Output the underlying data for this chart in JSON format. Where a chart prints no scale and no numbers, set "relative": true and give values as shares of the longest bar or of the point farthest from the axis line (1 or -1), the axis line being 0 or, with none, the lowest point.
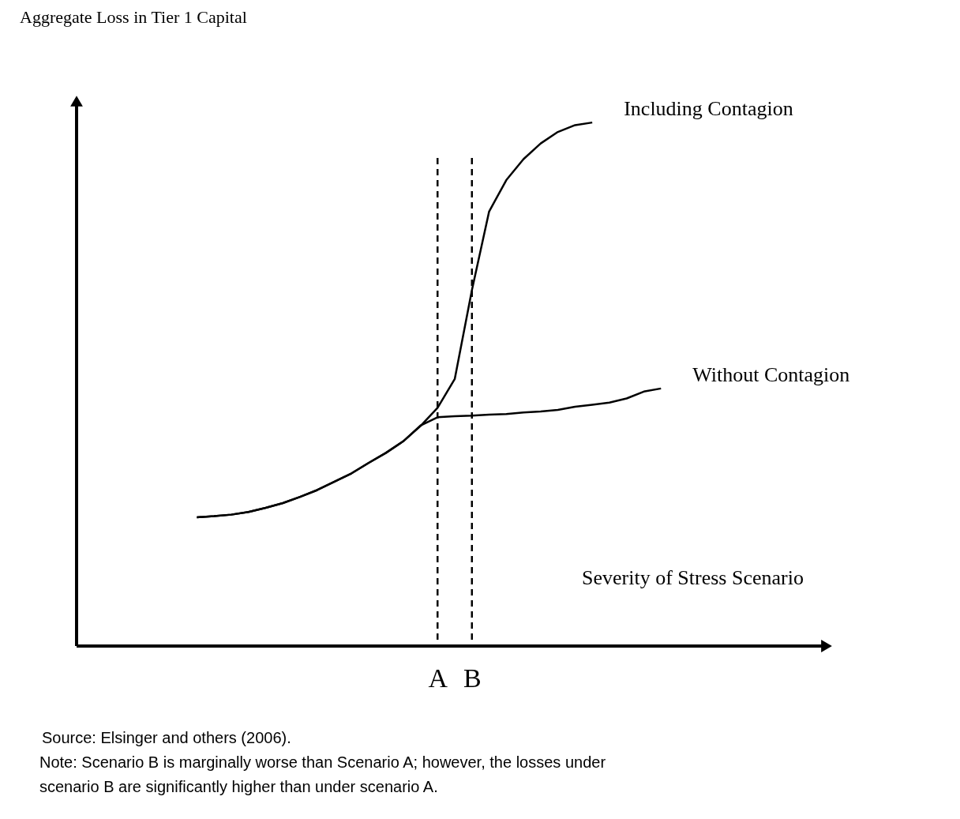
{
  "chart_data": {
    "type": "line",
    "relative": true,
    "title": "Aggregate Loss in Tier 1 Capital",
    "xlabel": "Severity of Stress Scenario",
    "tick_labels": "x",
    "grid": false,
    "legend": false,
    "marker": "none",
    "line_style": "solid",
    "categories": [
      null,
      null,
      null,
      null,
      null,
      null,
      null,
      null,
      null,
      null,
      null,
      null,
      null,
      null,
      null,
      null,
      null,
      null,
      null,
      null,
      null,
      "A",
      null,
      "B",
      null,
      null,
      null,
      null,
      null,
      null,
      null,
      null,
      null,
      null,
      null,
      null,
      null,
      null,
      null,
      null,
      null,
      null,
      null,
      null,
      null
    ],
    "series": [
      {
        "name": "Including Contagion",
        "color": "#000000",
        "values": [
          null,
          null,
          null,
          null,
          null,
          null,
          null,
          0.246,
          0.248,
          0.251,
          0.256,
          0.264,
          0.273,
          0.285,
          0.298,
          0.314,
          0.33,
          0.35,
          0.369,
          0.391,
          0.42,
          0.455,
          0.51,
          0.68,
          0.83,
          0.89,
          0.93,
          0.96,
          0.982,
          0.995,
          1.0,
          null,
          null,
          null,
          null,
          null,
          null,
          null,
          null,
          null,
          null,
          null,
          null,
          null,
          null
        ]
      },
      {
        "name": "Without Contagion",
        "color": "#000000",
        "values": [
          null,
          null,
          null,
          null,
          null,
          null,
          null,
          0.246,
          0.248,
          0.251,
          0.256,
          0.264,
          0.273,
          0.285,
          0.298,
          0.314,
          0.33,
          0.35,
          0.369,
          0.391,
          0.421,
          0.437,
          0.439,
          0.44,
          0.442,
          0.443,
          0.446,
          0.448,
          0.451,
          0.457,
          0.461,
          0.465,
          0.473,
          0.486,
          0.492,
          null,
          null,
          null,
          null,
          null,
          null,
          null,
          null,
          null,
          null
        ]
      }
    ],
    "ref_lines": [
      {
        "axis": "x",
        "value": "A",
        "color": "#000000",
        "line_style": "dashed"
      },
      {
        "axis": "x",
        "value": "B",
        "color": "#000000",
        "line_style": "dashed"
      }
    ],
    "annotations": [
      "Source: Elsinger and others (2006).",
      "Note: Scenario B is marginally worse than Scenario A; however, the losses under",
      "scenario B are significantly higher than under scenario A."
    ]
  }
}
